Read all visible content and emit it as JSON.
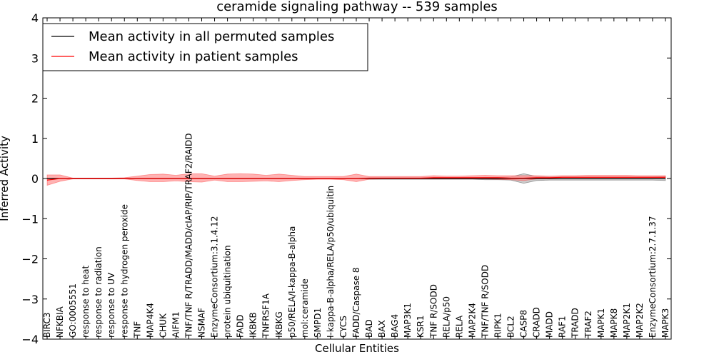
{
  "chart_data": {
    "type": "line",
    "title": "ceramide signaling pathway -- 539 samples",
    "xlabel": "Cellular Entities",
    "ylabel": "Inferred Activity",
    "ylim": [
      -4,
      4
    ],
    "yticks": [
      -4,
      -3,
      -2,
      -1,
      0,
      1,
      2,
      3,
      4
    ],
    "ytick_labels": [
      "−4",
      "−3",
      "−2",
      "−1",
      "0",
      "1",
      "2",
      "3",
      "4"
    ],
    "legend_position": "top-left",
    "categories": [
      "BIRC3",
      "NFKBIA",
      "GO:0005551",
      "response to heat",
      "response to radiation",
      "response to UV",
      "response to hydrogen peroxide",
      "TNF",
      "MAP4K4",
      "CHUK",
      "AIFM1",
      "TNF/TNF R/TRADD/MADD/cIAP/RIP/TRAF2/RAIDD",
      "NSMAF",
      "EnzymeConsortium:3.1.4.12",
      "protein ubiquitination",
      "FADD",
      "IKBKB",
      "TNFRSF1A",
      "IKBKG",
      "p50/RELA/I-kappa-B-alpha",
      "mol:ceramide",
      "SMPD1",
      "I-kappa-B-alpha/RELA/p50/ubiquitin",
      "CYCS",
      "FADD/Caspase 8",
      "BAD",
      "BAX",
      "BAG4",
      "MAP3K1",
      "KSR1",
      "TNF R/SODD",
      "RELA/p50",
      "RELA",
      "MAP2K4",
      "TNF/TNF R/SODD",
      "RIPK1",
      "BCL2",
      "CASP8",
      "CRADD",
      "MADD",
      "RAF1",
      "TRADD",
      "TRAF2",
      "MAPK1",
      "MAPK8",
      "MAP2K1",
      "MAP2K2",
      "EnzymeConsortium:2.7.1.37",
      "MAPK3"
    ],
    "series": [
      {
        "name": "Mean activity in all permuted samples",
        "color": "#000000",
        "band_color": "#bbbbbb",
        "values": [
          0,
          0,
          0,
          0,
          0,
          0,
          0,
          0,
          0,
          0,
          0,
          0,
          0,
          0,
          0,
          0,
          0,
          0,
          0,
          0,
          0,
          0,
          0,
          0,
          0,
          0,
          0,
          0,
          0,
          0,
          0,
          0,
          0,
          0,
          0,
          0,
          0,
          0,
          0,
          0,
          0,
          0,
          0,
          0,
          0,
          0,
          0,
          0,
          0
        ],
        "lower": [
          -0.01,
          -0.01,
          -0.01,
          -0.01,
          -0.01,
          -0.01,
          -0.01,
          -0.01,
          -0.01,
          -0.01,
          -0.01,
          -0.01,
          -0.01,
          -0.01,
          -0.01,
          -0.01,
          -0.01,
          -0.01,
          -0.01,
          -0.01,
          -0.01,
          -0.01,
          -0.01,
          -0.01,
          -0.01,
          -0.02,
          -0.02,
          -0.02,
          -0.02,
          -0.02,
          -0.02,
          -0.02,
          -0.02,
          -0.02,
          -0.03,
          -0.03,
          -0.04,
          -0.12,
          -0.05,
          -0.04,
          -0.04,
          -0.04,
          -0.04,
          -0.04,
          -0.04,
          -0.04,
          -0.04,
          -0.04,
          -0.05
        ],
        "upper": [
          0.01,
          0.01,
          0.01,
          0.01,
          0.01,
          0.01,
          0.01,
          0.01,
          0.01,
          0.01,
          0.01,
          0.01,
          0.01,
          0.01,
          0.01,
          0.01,
          0.01,
          0.01,
          0.01,
          0.01,
          0.01,
          0.01,
          0.01,
          0.01,
          0.01,
          0.02,
          0.02,
          0.02,
          0.02,
          0.02,
          0.02,
          0.02,
          0.02,
          0.02,
          0.03,
          0.03,
          0.04,
          0.12,
          0.05,
          0.04,
          0.04,
          0.04,
          0.04,
          0.04,
          0.04,
          0.04,
          0.04,
          0.04,
          0.05
        ]
      },
      {
        "name": "Mean activity in patient samples",
        "color": "#ff0000",
        "band_color": "#ff9a9a",
        "values": [
          -0.04,
          0,
          0,
          0,
          0,
          0,
          0,
          0,
          0,
          0,
          0,
          0,
          0,
          0,
          0,
          0,
          0,
          0,
          0,
          0,
          0,
          0,
          0,
          0,
          0,
          0.01,
          0.01,
          0.01,
          0.01,
          0.01,
          0.02,
          0.02,
          0.02,
          0.02,
          0.02,
          0.02,
          0.01,
          0.01,
          0.02,
          0.02,
          0.03,
          0.03,
          0.03,
          0.03,
          0.03,
          0.03,
          0.03,
          0.03,
          0.03
        ],
        "lower": [
          -0.17,
          -0.07,
          -0.01,
          -0.01,
          -0.01,
          -0.01,
          -0.01,
          -0.05,
          -0.08,
          -0.08,
          -0.06,
          -0.08,
          -0.09,
          -0.04,
          -0.08,
          -0.08,
          -0.07,
          -0.06,
          -0.08,
          -0.05,
          -0.03,
          -0.02,
          -0.02,
          -0.03,
          -0.08,
          -0.02,
          -0.01,
          -0.01,
          -0.01,
          -0.01,
          -0.01,
          -0.01,
          -0.01,
          -0.01,
          -0.01,
          -0.02,
          -0.03,
          -0.05,
          -0.01,
          -0.01,
          0,
          0,
          0,
          0,
          0,
          0,
          0,
          0,
          0
        ],
        "upper": [
          0.09,
          0.09,
          0.01,
          0.01,
          0.01,
          0.01,
          0.02,
          0.06,
          0.1,
          0.11,
          0.08,
          0.12,
          0.12,
          0.06,
          0.11,
          0.12,
          0.11,
          0.08,
          0.11,
          0.08,
          0.05,
          0.05,
          0.05,
          0.05,
          0.11,
          0.05,
          0.05,
          0.05,
          0.05,
          0.05,
          0.07,
          0.06,
          0.06,
          0.07,
          0.08,
          0.07,
          0.07,
          0.07,
          0.07,
          0.06,
          0.07,
          0.07,
          0.08,
          0.08,
          0.08,
          0.08,
          0.07,
          0.07,
          0.07
        ]
      }
    ]
  }
}
